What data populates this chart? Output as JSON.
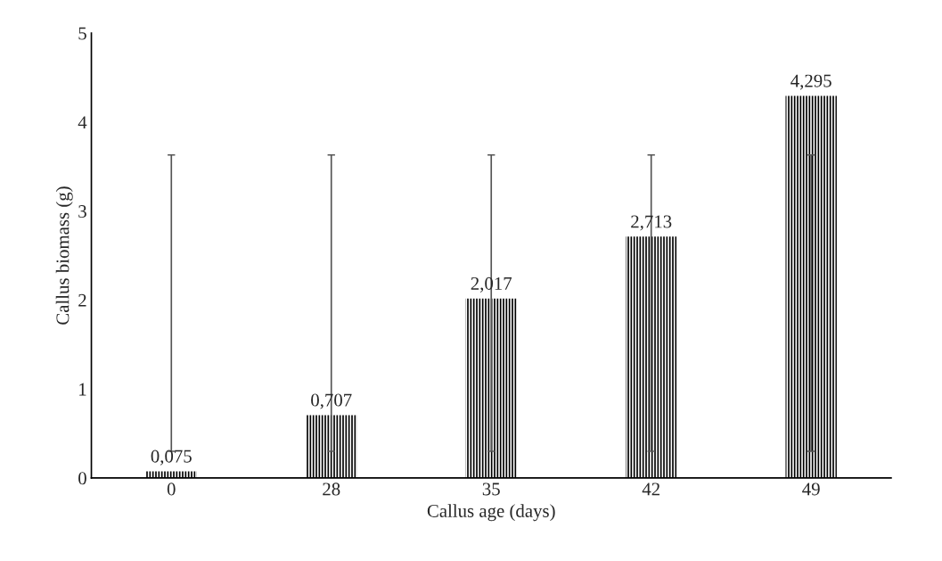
{
  "chart_data": {
    "type": "bar",
    "xlabel": "Callus age (days)",
    "ylabel": "Callus biomass (g)",
    "categories": [
      "0",
      "28",
      "35",
      "42",
      "49"
    ],
    "values": [
      0.075,
      0.707,
      2.017,
      2.713,
      4.295
    ],
    "value_labels": [
      "0,075",
      "0,707",
      "2,017",
      "2,713",
      "4,295"
    ],
    "errors": [
      [
        0.3,
        3.63
      ],
      [
        0.3,
        3.63
      ],
      [
        0.3,
        3.63
      ],
      [
        0.3,
        3.63
      ],
      [
        0.3,
        3.63
      ]
    ],
    "color": "#000000",
    "ylim": [
      0,
      5
    ],
    "yticks": [
      0,
      1,
      2,
      3,
      4,
      5
    ],
    "grid": false,
    "legend": false
  }
}
